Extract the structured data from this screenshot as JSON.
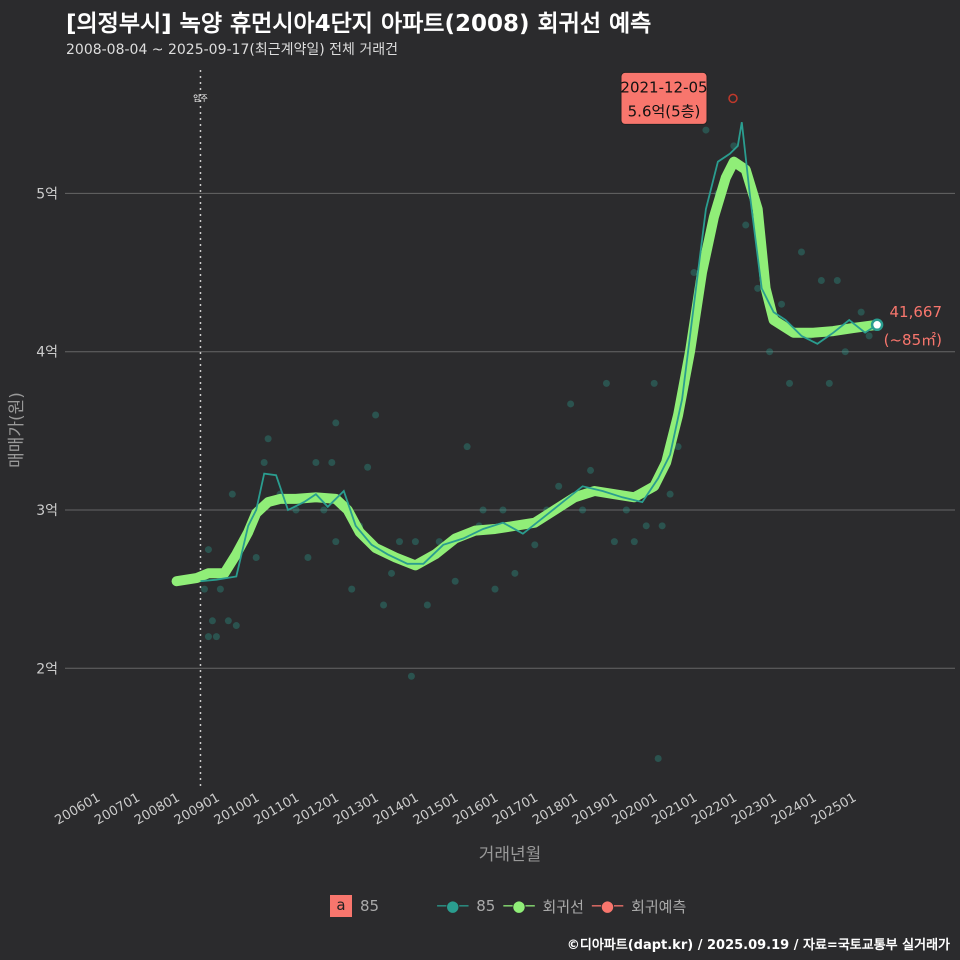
{
  "title": "[의정부시] 녹양 휴먼시아4단지 아파트(2008) 회귀선 예측",
  "subtitle": "2008-08-04 ~ 2025-09-17(최근계약일) 전체 거래건",
  "caption": "©디아파트(dapt.kr) / 2025.09.19 / 자료=국토교통부 실거래가",
  "legend": {
    "a_box": "a",
    "a_label": "85",
    "items": [
      {
        "label": "85",
        "color": "#2a9d8f"
      },
      {
        "label": "회귀선",
        "color": "#90ee78"
      },
      {
        "label": "회귀예측",
        "color": "#f8766d"
      }
    ]
  },
  "chart_data": {
    "type": "line",
    "xlabel": "거래년월",
    "ylabel": "매매가(원)",
    "xlim": [
      2005.2,
      2026.4
    ],
    "ylim": [
      1.25,
      5.85
    ],
    "x_ticks": [
      {
        "v": 2006,
        "label": "200601"
      },
      {
        "v": 2007,
        "label": "200701"
      },
      {
        "v": 2008,
        "label": "200801"
      },
      {
        "v": 2009,
        "label": "200901"
      },
      {
        "v": 2010,
        "label": "201001"
      },
      {
        "v": 2011,
        "label": "201101"
      },
      {
        "v": 2012,
        "label": "201201"
      },
      {
        "v": 2013,
        "label": "201301"
      },
      {
        "v": 2014,
        "label": "201401"
      },
      {
        "v": 2015,
        "label": "201501"
      },
      {
        "v": 2016,
        "label": "201601"
      },
      {
        "v": 2017,
        "label": "201701"
      },
      {
        "v": 2018,
        "label": "201801"
      },
      {
        "v": 2019,
        "label": "201901"
      },
      {
        "v": 2020,
        "label": "202001"
      },
      {
        "v": 2021,
        "label": "202101"
      },
      {
        "v": 2022,
        "label": "202201"
      },
      {
        "v": 2023,
        "label": "202301"
      },
      {
        "v": 2024,
        "label": "202401"
      },
      {
        "v": 2025,
        "label": "202501"
      }
    ],
    "y_ticks": [
      {
        "v": 2,
        "label": "2억"
      },
      {
        "v": 3,
        "label": "3억"
      },
      {
        "v": 4,
        "label": "4억"
      },
      {
        "v": 5,
        "label": "5억"
      }
    ],
    "vline": {
      "x": 2008.6,
      "label": "입주"
    },
    "regression": [
      [
        2008.0,
        2.55
      ],
      [
        2008.5,
        2.57
      ],
      [
        2008.8,
        2.6
      ],
      [
        2009.2,
        2.6
      ],
      [
        2009.5,
        2.72
      ],
      [
        2009.8,
        2.86
      ],
      [
        2010.0,
        2.98
      ],
      [
        2010.3,
        3.05
      ],
      [
        2010.6,
        3.07
      ],
      [
        2011.0,
        3.07
      ],
      [
        2011.5,
        3.08
      ],
      [
        2012.0,
        3.07
      ],
      [
        2012.3,
        3.0
      ],
      [
        2012.6,
        2.86
      ],
      [
        2013.0,
        2.76
      ],
      [
        2013.5,
        2.7
      ],
      [
        2014.0,
        2.65
      ],
      [
        2014.5,
        2.72
      ],
      [
        2015.0,
        2.82
      ],
      [
        2015.5,
        2.87
      ],
      [
        2016.0,
        2.88
      ],
      [
        2016.5,
        2.9
      ],
      [
        2017.0,
        2.92
      ],
      [
        2017.5,
        3.0
      ],
      [
        2018.0,
        3.08
      ],
      [
        2018.5,
        3.12
      ],
      [
        2019.0,
        3.1
      ],
      [
        2019.5,
        3.08
      ],
      [
        2020.0,
        3.15
      ],
      [
        2020.3,
        3.3
      ],
      [
        2020.6,
        3.6
      ],
      [
        2020.9,
        4.0
      ],
      [
        2021.2,
        4.5
      ],
      [
        2021.5,
        4.85
      ],
      [
        2021.8,
        5.1
      ],
      [
        2022.0,
        5.2
      ],
      [
        2022.3,
        5.15
      ],
      [
        2022.6,
        4.9
      ],
      [
        2022.8,
        4.4
      ],
      [
        2023.0,
        4.2
      ],
      [
        2023.5,
        4.12
      ],
      [
        2024.0,
        4.12
      ],
      [
        2024.5,
        4.13
      ],
      [
        2025.0,
        4.15
      ],
      [
        2025.6,
        4.17
      ]
    ],
    "moving_avg": [
      [
        2008.6,
        2.55
      ],
      [
        2009.0,
        2.56
      ],
      [
        2009.5,
        2.58
      ],
      [
        2009.8,
        2.9
      ],
      [
        2010.0,
        3.0
      ],
      [
        2010.2,
        3.23
      ],
      [
        2010.5,
        3.22
      ],
      [
        2010.8,
        3.0
      ],
      [
        2011.2,
        3.05
      ],
      [
        2011.5,
        3.1
      ],
      [
        2011.8,
        3.02
      ],
      [
        2012.2,
        3.12
      ],
      [
        2012.5,
        2.9
      ],
      [
        2012.9,
        2.78
      ],
      [
        2013.3,
        2.72
      ],
      [
        2013.8,
        2.66
      ],
      [
        2014.2,
        2.66
      ],
      [
        2014.7,
        2.78
      ],
      [
        2015.2,
        2.82
      ],
      [
        2015.7,
        2.88
      ],
      [
        2016.2,
        2.92
      ],
      [
        2016.7,
        2.85
      ],
      [
        2017.2,
        2.95
      ],
      [
        2017.7,
        3.05
      ],
      [
        2018.2,
        3.15
      ],
      [
        2018.7,
        3.12
      ],
      [
        2019.2,
        3.08
      ],
      [
        2019.7,
        3.05
      ],
      [
        2020.1,
        3.2
      ],
      [
        2020.4,
        3.35
      ],
      [
        2020.7,
        3.7
      ],
      [
        2021.0,
        4.3
      ],
      [
        2021.3,
        4.9
      ],
      [
        2021.6,
        5.2
      ],
      [
        2021.9,
        5.25
      ],
      [
        2022.1,
        5.3
      ],
      [
        2022.2,
        5.45
      ],
      [
        2022.4,
        5.0
      ],
      [
        2022.7,
        4.4
      ],
      [
        2023.0,
        4.25
      ],
      [
        2023.3,
        4.2
      ],
      [
        2023.7,
        4.1
      ],
      [
        2024.1,
        4.05
      ],
      [
        2024.5,
        4.12
      ],
      [
        2024.9,
        4.2
      ],
      [
        2025.3,
        4.12
      ],
      [
        2025.6,
        4.17
      ]
    ],
    "scatter": [
      [
        2008.7,
        2.5
      ],
      [
        2008.8,
        2.2
      ],
      [
        2009.0,
        2.2
      ],
      [
        2008.8,
        2.75
      ],
      [
        2008.9,
        2.3
      ],
      [
        2009.1,
        2.5
      ],
      [
        2009.3,
        2.3
      ],
      [
        2009.5,
        2.27
      ],
      [
        2009.4,
        3.1
      ],
      [
        2010.0,
        2.7
      ],
      [
        2010.2,
        3.3
      ],
      [
        2010.3,
        3.45
      ],
      [
        2010.6,
        3.1
      ],
      [
        2011.0,
        3.0
      ],
      [
        2011.3,
        2.7
      ],
      [
        2011.5,
        3.3
      ],
      [
        2011.7,
        3.0
      ],
      [
        2011.9,
        3.3
      ],
      [
        2012.0,
        2.8
      ],
      [
        2012.0,
        3.55
      ],
      [
        2012.4,
        2.5
      ],
      [
        2012.6,
        2.9
      ],
      [
        2012.8,
        3.27
      ],
      [
        2013.0,
        3.6
      ],
      [
        2013.2,
        2.4
      ],
      [
        2013.4,
        2.6
      ],
      [
        2013.6,
        2.8
      ],
      [
        2013.9,
        1.95
      ],
      [
        2014.0,
        2.8
      ],
      [
        2014.3,
        2.4
      ],
      [
        2014.6,
        2.8
      ],
      [
        2015.0,
        2.55
      ],
      [
        2015.3,
        3.4
      ],
      [
        2015.6,
        2.9
      ],
      [
        2015.7,
        3.0
      ],
      [
        2016.0,
        2.5
      ],
      [
        2016.2,
        3.0
      ],
      [
        2016.5,
        2.6
      ],
      [
        2016.7,
        2.9
      ],
      [
        2017.0,
        2.78
      ],
      [
        2017.3,
        3.0
      ],
      [
        2017.6,
        3.15
      ],
      [
        2017.9,
        3.67
      ],
      [
        2018.2,
        3.0
      ],
      [
        2018.4,
        3.25
      ],
      [
        2018.8,
        3.8
      ],
      [
        2019.0,
        2.8
      ],
      [
        2019.3,
        3.0
      ],
      [
        2019.5,
        2.8
      ],
      [
        2019.8,
        2.9
      ],
      [
        2020.0,
        3.8
      ],
      [
        2020.1,
        1.43
      ],
      [
        2020.2,
        2.9
      ],
      [
        2020.4,
        3.1
      ],
      [
        2020.6,
        3.4
      ],
      [
        2020.8,
        3.8
      ],
      [
        2021.0,
        4.5
      ],
      [
        2021.3,
        5.4
      ],
      [
        2021.6,
        5.0
      ],
      [
        2022.0,
        5.3
      ],
      [
        2022.3,
        4.8
      ],
      [
        2022.6,
        4.4
      ],
      [
        2022.9,
        4.0
      ],
      [
        2023.2,
        4.3
      ],
      [
        2023.4,
        3.8
      ],
      [
        2023.7,
        4.63
      ],
      [
        2023.9,
        4.1
      ],
      [
        2024.2,
        4.45
      ],
      [
        2024.4,
        3.8
      ],
      [
        2024.6,
        4.45
      ],
      [
        2024.8,
        4.0
      ],
      [
        2025.2,
        4.25
      ],
      [
        2025.4,
        4.1
      ]
    ],
    "peak": {
      "x": 2021.98,
      "y": 5.6,
      "date": "2021-12-05",
      "value_label": "5.6억(5층)"
    },
    "last": {
      "x": 2025.6,
      "y": 4.17,
      "value_label": "41,667",
      "area_label": "(~85㎡)"
    }
  }
}
